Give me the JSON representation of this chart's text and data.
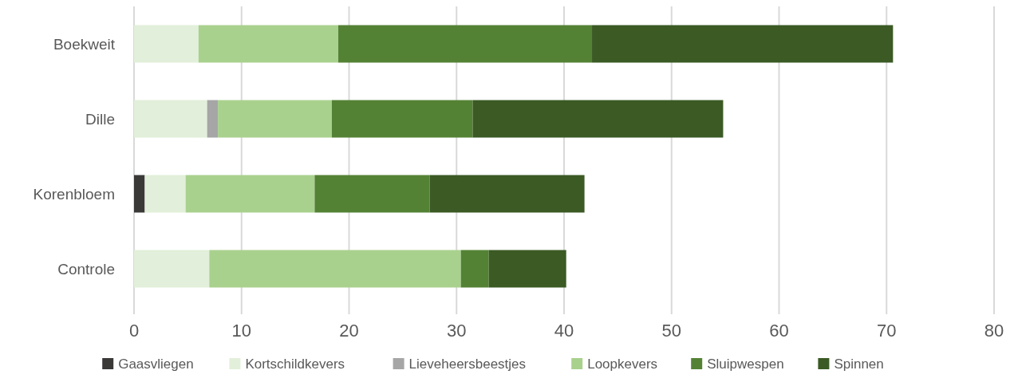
{
  "chart_data": {
    "type": "bar",
    "orientation": "horizontal",
    "stacked": true,
    "categories": [
      "Boekweit",
      "Dille",
      "Korenbloem",
      "Controle"
    ],
    "series": [
      {
        "name": "Gaasvliegen",
        "color": "#3b3838",
        "values": [
          0,
          0,
          1.0,
          0
        ]
      },
      {
        "name": "Kortschildkevers",
        "color": "#e2efda",
        "values": [
          6.0,
          6.8,
          3.8,
          7.0
        ]
      },
      {
        "name": "Lieveheersbeestjes",
        "color": "#a6a6a6",
        "values": [
          0,
          1.0,
          0,
          0
        ]
      },
      {
        "name": "Loopkevers",
        "color": "#a9d18e",
        "values": [
          13.0,
          10.6,
          12.0,
          23.4
        ]
      },
      {
        "name": "Sluipwespen",
        "color": "#548235",
        "values": [
          23.6,
          13.1,
          10.7,
          2.6
        ]
      },
      {
        "name": "Spinnen",
        "color": "#3b5a24",
        "values": [
          28.0,
          23.3,
          14.4,
          7.2
        ]
      }
    ],
    "xlim": [
      0,
      80
    ],
    "xticks": [
      0,
      10,
      20,
      30,
      40,
      50,
      60,
      70,
      80
    ],
    "grid": "x",
    "legend": "bottom"
  }
}
